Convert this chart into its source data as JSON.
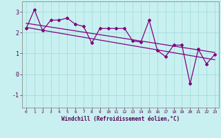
{
  "xlabel": "Windchill (Refroidissement éolien,°C)",
  "background_color": "#c8f0f0",
  "line_color": "#800080",
  "xlim": [
    -0.5,
    23.5
  ],
  "ylim": [
    -1.6,
    3.5
  ],
  "yticks": [
    -1,
    0,
    1,
    2,
    3
  ],
  "xticks": [
    0,
    1,
    2,
    3,
    4,
    5,
    6,
    7,
    8,
    9,
    10,
    11,
    12,
    13,
    14,
    15,
    16,
    17,
    18,
    19,
    20,
    21,
    22,
    23
  ],
  "series1_y": [
    2.2,
    3.1,
    2.1,
    2.6,
    2.6,
    2.7,
    2.4,
    2.3,
    1.5,
    2.2,
    2.2,
    2.2,
    2.2,
    1.6,
    1.55,
    2.6,
    1.15,
    0.85,
    1.4,
    1.4,
    -0.45,
    1.2,
    0.5,
    0.95
  ],
  "trend1_x": [
    0,
    23
  ],
  "trend1_y": [
    2.45,
    1.05
  ],
  "trend2_x": [
    0,
    23
  ],
  "trend2_y": [
    2.25,
    0.7
  ],
  "font_family": "monospace"
}
